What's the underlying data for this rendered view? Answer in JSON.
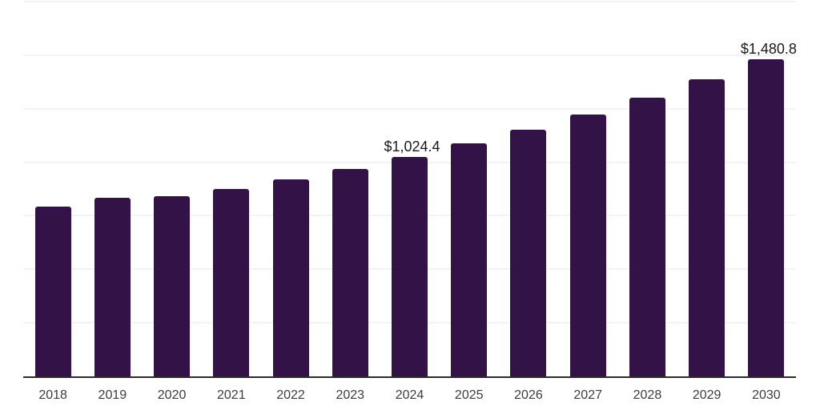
{
  "chart_data": {
    "type": "bar",
    "title": "",
    "xlabel": "",
    "ylabel": "",
    "categories": [
      "2018",
      "2019",
      "2020",
      "2021",
      "2022",
      "2023",
      "2024",
      "2025",
      "2026",
      "2027",
      "2028",
      "2029",
      "2030"
    ],
    "values": [
      794.6,
      833.9,
      841.3,
      875.0,
      921.7,
      968.4,
      1024.4,
      1088.0,
      1151.6,
      1222.8,
      1301.2,
      1387.2,
      1480.8
    ],
    "data_labels": [
      {
        "category": "2024",
        "category_index": 6,
        "text": "$1,024.4"
      },
      {
        "category": "2030",
        "category_index": 12,
        "text": "$1,480.8"
      }
    ],
    "ylim": [
      0,
      1750
    ],
    "gridline_values": [
      250,
      500,
      750,
      1000,
      1250,
      1500,
      1750
    ],
    "grid": true,
    "legend": false,
    "colors": {
      "bar": "#321247",
      "gridline": "#f3f3f3",
      "axis_line": "#2b2b2b",
      "data_label_text": "#1a1a1a",
      "tick_label_text": "#3c3c3c",
      "background": "#ffffff"
    }
  }
}
